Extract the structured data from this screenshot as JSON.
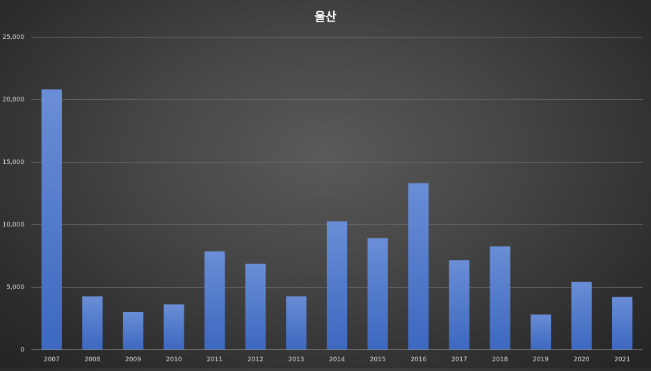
{
  "chart_data": {
    "type": "bar",
    "title": "울산",
    "xlabel": "",
    "ylabel": "",
    "categories": [
      "2007",
      "2008",
      "2009",
      "2010",
      "2011",
      "2012",
      "2013",
      "2014",
      "2015",
      "2016",
      "2017",
      "2018",
      "2019",
      "2020",
      "2021"
    ],
    "values": [
      20800,
      4250,
      3000,
      3600,
      7850,
      6850,
      4250,
      10250,
      8900,
      13300,
      7150,
      8250,
      2800,
      5400,
      4200
    ],
    "ylim": [
      0,
      25000
    ],
    "yticks": [
      0,
      5000,
      10000,
      15000,
      20000,
      25000
    ],
    "ytick_labels": [
      "0",
      "5,000",
      "10,000",
      "15,000",
      "20,000",
      "25,000"
    ],
    "grid": true,
    "legend": "none",
    "bar_color": "#4472c4"
  }
}
